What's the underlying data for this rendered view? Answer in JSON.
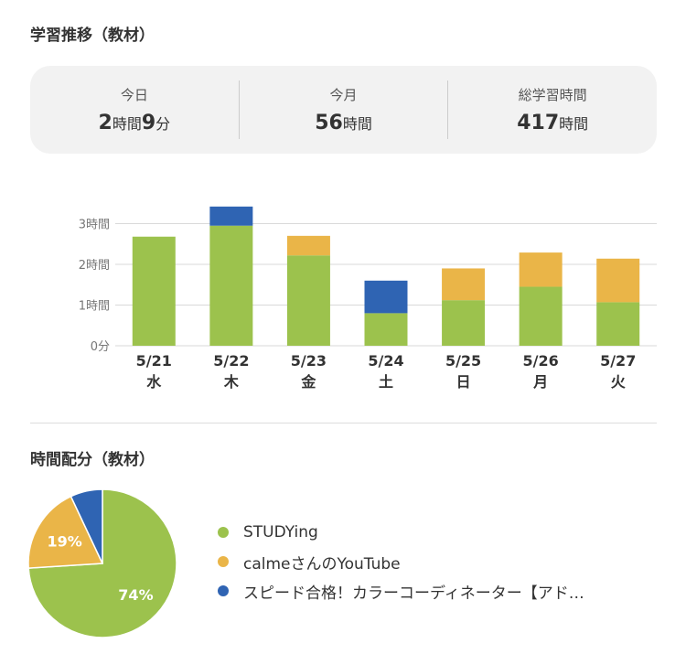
{
  "sections": {
    "trend_title": "学習推移（教材）",
    "allocation_title": "時間配分（教材）"
  },
  "stats": [
    {
      "label": "今日",
      "value_num1": "2",
      "value_unit1": "時間",
      "value_num2": "9",
      "value_unit2": "分"
    },
    {
      "label": "今月",
      "value_num1": "56",
      "value_unit1": "時間",
      "value_num2": "",
      "value_unit2": ""
    },
    {
      "label": "総学習時間",
      "value_num1": "417",
      "value_unit1": "時間",
      "value_num2": "",
      "value_unit2": ""
    }
  ],
  "colors": {
    "green": "#9cc24d",
    "yellow": "#eab548",
    "blue": "#2f64b3",
    "grid": "#d9d9d9",
    "tick_text": "#777777"
  },
  "chart_data": [
    {
      "type": "bar",
      "stacked": true,
      "categories": [
        "5/21",
        "5/22",
        "5/23",
        "5/24",
        "5/25",
        "5/26",
        "5/27"
      ],
      "category_sublabels": [
        "水",
        "木",
        "金",
        "土",
        "日",
        "月",
        "火"
      ],
      "y_ticks": [
        "0分",
        "1時間",
        "2時間",
        "3時間"
      ],
      "y_tick_values": [
        0,
        1,
        2,
        3
      ],
      "ylim": [
        0,
        3.4
      ],
      "grid": true,
      "series": [
        {
          "name": "STUDYing",
          "color": "#9cc24d",
          "values": [
            2.68,
            2.95,
            2.22,
            0.8,
            1.12,
            1.45,
            1.07
          ]
        },
        {
          "name": "calmeさんのYouTube",
          "color": "#eab548",
          "values": [
            0,
            0,
            0.48,
            0,
            0.78,
            0.84,
            1.07
          ]
        },
        {
          "name": "スピード合格！カラーコーディネーター【アド…",
          "color": "#2f64b3",
          "values": [
            0,
            0.47,
            0,
            0.8,
            0,
            0,
            0
          ]
        }
      ]
    },
    {
      "type": "pie",
      "labels": [
        "STUDYing",
        "calmeさんのYouTube",
        "スピード合格！カラーコーディネーター【アド…"
      ],
      "values": [
        74,
        19,
        7
      ],
      "colors": [
        "#9cc24d",
        "#eab548",
        "#2f64b3"
      ],
      "data_labels": [
        "74%",
        "19%",
        ""
      ]
    }
  ],
  "legend": [
    {
      "label": "STUDYing",
      "color": "#9cc24d"
    },
    {
      "label": "calmeさんのYouTube",
      "color": "#eab548"
    },
    {
      "label": "スピード合格！カラーコーディネーター【アド…",
      "color": "#2f64b3"
    }
  ]
}
